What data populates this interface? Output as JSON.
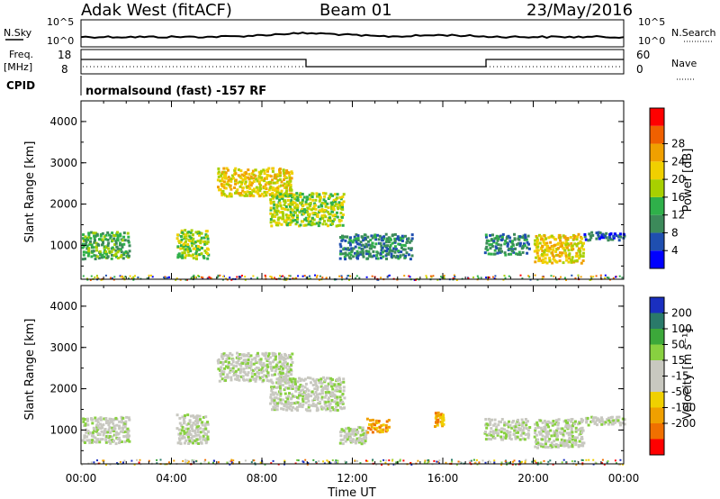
{
  "header": {
    "station": "Adak West (fitACF)",
    "beam": "Beam 01",
    "date": "23/May/2016"
  },
  "noise_panel": {
    "left_label": "N.Sky",
    "left_ticks": [
      "10^5",
      "10^0"
    ],
    "right_label": "N.Search",
    "right_ticks": [
      "10^5",
      "10^0"
    ]
  },
  "freq_panel": {
    "left_label_1": "Freq.",
    "left_label_2": "[MHz]",
    "left_ticks": [
      "18",
      "8"
    ],
    "right_label": "Nave",
    "right_ticks": [
      "60",
      "0"
    ],
    "cpid_label": "CPID",
    "cpid_text": "normalsound (fast) -157 RF"
  },
  "chart_data": [
    {
      "type": "heatmap",
      "name": "power",
      "ylabel": "Slant Range [km]",
      "yticks": [
        "1000",
        "2000",
        "3000",
        "4000"
      ],
      "ylim": [
        180,
        4500
      ],
      "colorbar_label": "Power [dB]",
      "colorbar_ticks": [
        "4",
        "8",
        "12",
        "16",
        "20",
        "24",
        "28"
      ],
      "colors": [
        "#0000ff",
        "#1f4fb0",
        "#3c8a5a",
        "#2fb04a",
        "#a8d000",
        "#f0d000",
        "#f0a000",
        "#f06000",
        "#ff0000"
      ],
      "regions": [
        {
          "t0": 0.0,
          "t1": 2.1,
          "r0": 700,
          "r1": 1350,
          "level": 3
        },
        {
          "t0": 4.2,
          "t1": 5.6,
          "r0": 700,
          "r1": 1400,
          "level": 4
        },
        {
          "t0": 6.0,
          "t1": 9.3,
          "r0": 2200,
          "r1": 2900,
          "level": 5
        },
        {
          "t0": 8.3,
          "t1": 11.6,
          "r0": 1500,
          "r1": 2300,
          "level": 4
        },
        {
          "t0": 11.4,
          "t1": 14.6,
          "r0": 700,
          "r1": 1300,
          "level": 2
        },
        {
          "t0": 17.8,
          "t1": 19.8,
          "r0": 800,
          "r1": 1300,
          "level": 2
        },
        {
          "t0": 20.0,
          "t1": 22.2,
          "r0": 600,
          "r1": 1300,
          "level": 5
        },
        {
          "t0": 22.2,
          "t1": 24.0,
          "r0": 1150,
          "r1": 1350,
          "level": 1
        }
      ]
    },
    {
      "type": "heatmap",
      "name": "velocity",
      "ylabel": "Slant Range [km]",
      "yticks": [
        "1000",
        "2000",
        "3000",
        "4000"
      ],
      "ylim": [
        180,
        4500
      ],
      "colorbar_label": "Velocity [m s⁻¹]",
      "colorbar_ticks": [
        "200",
        "100",
        "50",
        "15",
        "-15",
        "-50",
        "-100",
        "-200"
      ],
      "colors": [
        "#1a2fc0",
        "#2a7a6a",
        "#3ca83a",
        "#88d040",
        "#c8c8c0",
        "#c8c8c0",
        "#f0d000",
        "#f0a000",
        "#f07000",
        "#ff0000"
      ],
      "regions": [
        {
          "t0": 0.0,
          "t1": 2.1,
          "r0": 700,
          "r1": 1350,
          "level": 4
        },
        {
          "t0": 4.2,
          "t1": 5.6,
          "r0": 700,
          "r1": 1400,
          "level": 4
        },
        {
          "t0": 6.0,
          "t1": 9.3,
          "r0": 2200,
          "r1": 2900,
          "level": 4
        },
        {
          "t0": 8.3,
          "t1": 11.6,
          "r0": 1500,
          "r1": 2300,
          "level": 4
        },
        {
          "t0": 11.4,
          "t1": 12.6,
          "r0": 700,
          "r1": 1100,
          "level": 4
        },
        {
          "t0": 12.6,
          "t1": 13.6,
          "r0": 950,
          "r1": 1300,
          "level": 7
        },
        {
          "t0": 15.6,
          "t1": 16.0,
          "r0": 1100,
          "r1": 1450,
          "level": 7
        },
        {
          "t0": 17.8,
          "t1": 19.8,
          "r0": 800,
          "r1": 1300,
          "level": 4
        },
        {
          "t0": 20.0,
          "t1": 22.2,
          "r0": 600,
          "r1": 1300,
          "level": 4
        },
        {
          "t0": 22.2,
          "t1": 24.0,
          "r0": 1150,
          "r1": 1350,
          "level": 4
        }
      ]
    }
  ],
  "time_axis": {
    "label": "Time UT",
    "ticks": [
      "00:00",
      "04:00",
      "08:00",
      "12:00",
      "16:00",
      "20:00",
      "00:00"
    ]
  }
}
